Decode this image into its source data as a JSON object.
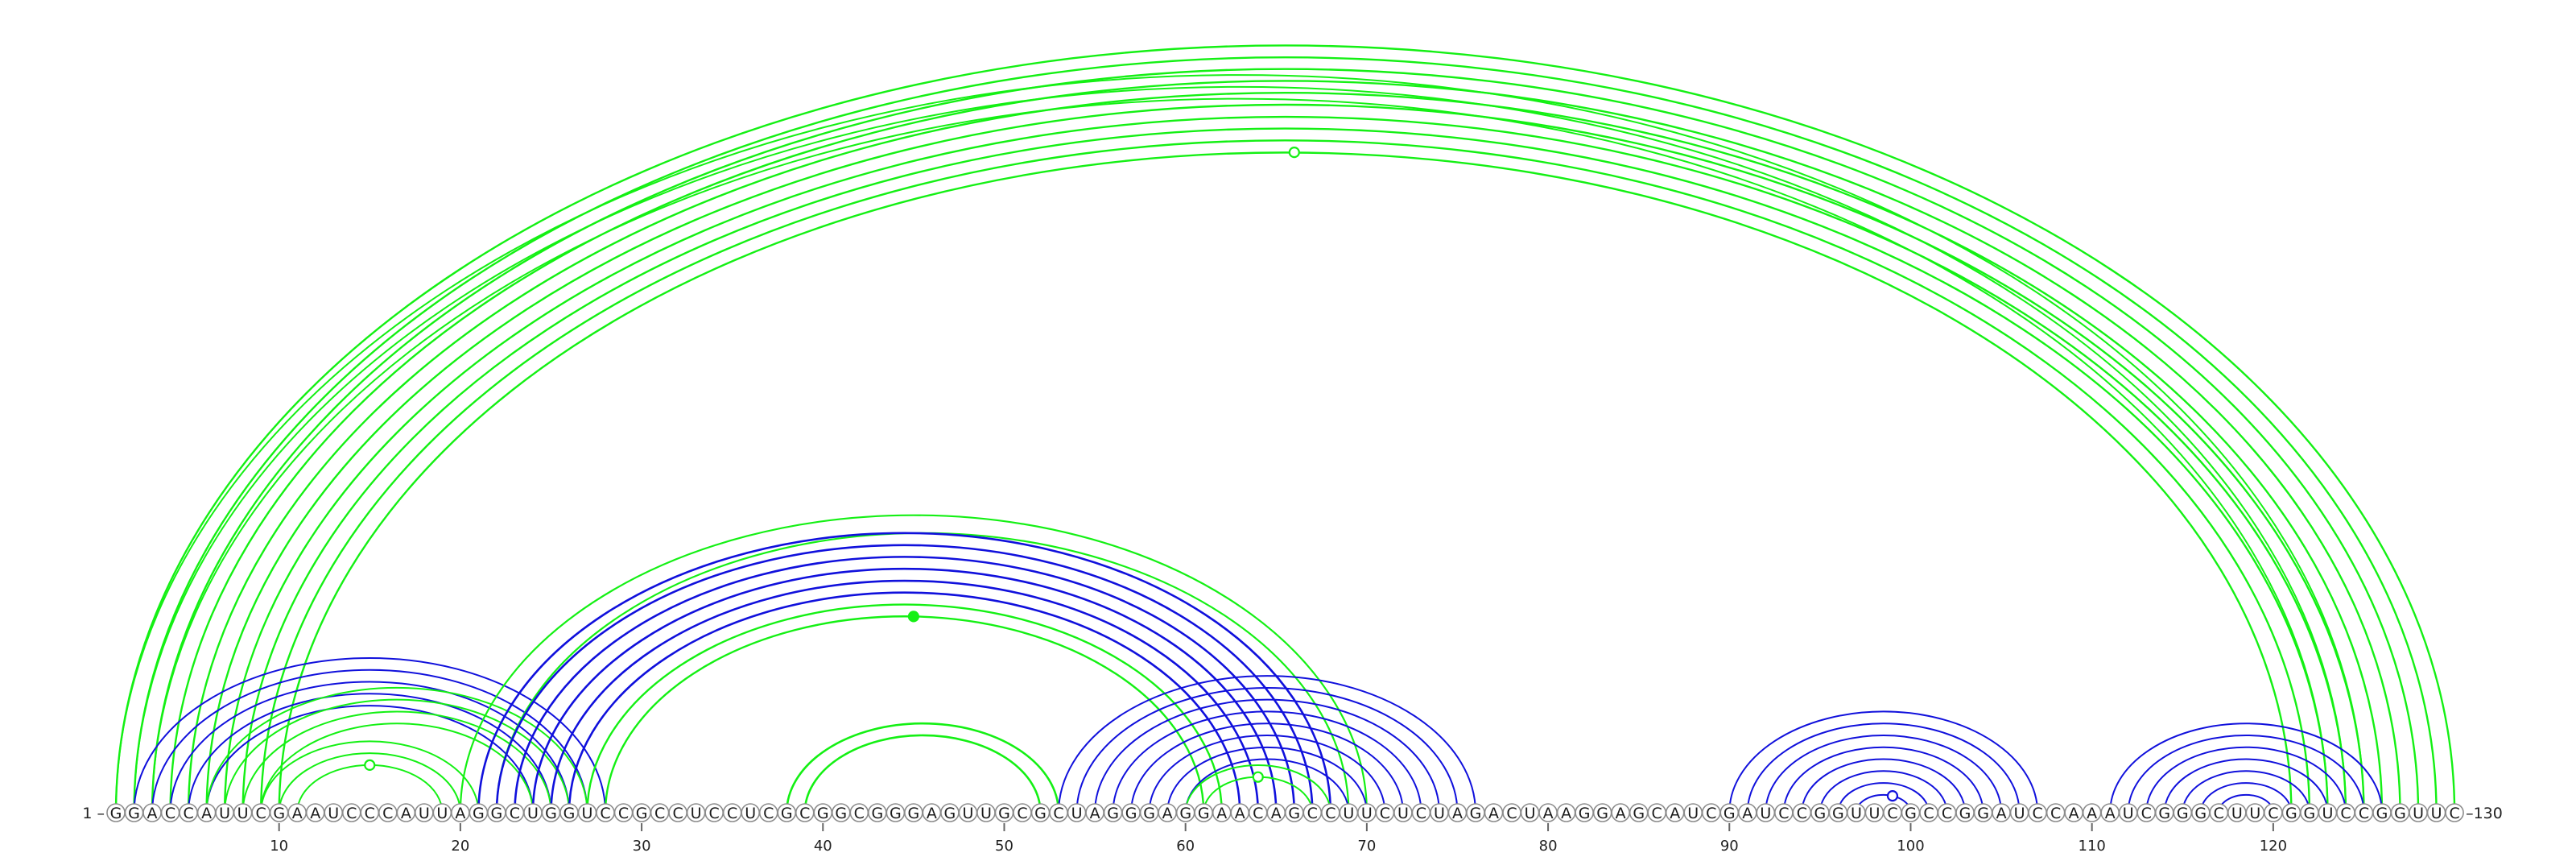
{
  "diagram": {
    "start_label": "1 –",
    "end_label": "–130",
    "sequence": "GGACCAUUCGAAUCCCAUUAGGCUGGUCCGCCUCCUCGCGGCGGGAGUUGCGCUAGGGAGGAACAGCCUUCUCUAGACUAAGGAGCAUCGAUCCGGUUCGCCGGAUCCAAAUCGGGCUUCGGUCCGGUUC",
    "ticks": [
      10,
      20,
      30,
      40,
      50,
      60,
      70,
      80,
      90,
      100,
      110,
      120
    ],
    "colors": {
      "green": "#14f014",
      "blue": "#1010dc"
    },
    "arc_groups": [
      {
        "color": "green",
        "w": 2.4,
        "pairs": [
          [
            1,
            130
          ],
          [
            2,
            129
          ],
          [
            3,
            128
          ],
          [
            4,
            127
          ],
          [
            5,
            126
          ],
          [
            6,
            125
          ],
          [
            7,
            124
          ],
          [
            8,
            123
          ],
          [
            9,
            122
          ],
          [
            10,
            121
          ]
        ],
        "marker": {
          "pos": 66,
          "filled": false
        }
      },
      {
        "color": "green",
        "w": 2.0,
        "pairs": [
          [
            1,
            125
          ],
          [
            2,
            124
          ],
          [
            3,
            123
          ]
        ]
      },
      {
        "color": "blue",
        "w": 2.0,
        "pairs": [
          [
            2,
            28
          ],
          [
            3,
            27
          ],
          [
            4,
            26
          ],
          [
            5,
            25
          ],
          [
            6,
            24
          ]
        ]
      },
      {
        "color": "green",
        "w": 2.0,
        "pairs": [
          [
            6,
            27
          ],
          [
            7,
            26
          ],
          [
            8,
            25
          ],
          [
            9,
            24
          ]
        ]
      },
      {
        "color": "green",
        "w": 2.0,
        "pairs": [
          [
            9,
            21
          ],
          [
            10,
            20
          ],
          [
            11,
            19
          ]
        ],
        "marker": {
          "pos": 15,
          "filled": false
        }
      },
      {
        "color": "green",
        "w": 2.2,
        "pairs": [
          [
            20,
            70
          ],
          [
            22,
            69
          ]
        ]
      },
      {
        "color": "blue",
        "w": 2.6,
        "pairs": [
          [
            21,
            68
          ],
          [
            22,
            67
          ],
          [
            23,
            66
          ],
          [
            24,
            65
          ],
          [
            25,
            64
          ],
          [
            26,
            63
          ]
        ]
      },
      {
        "color": "green",
        "w": 2.4,
        "pairs": [
          [
            27,
            62
          ],
          [
            28,
            61
          ]
        ],
        "marker": {
          "pos": 45,
          "filled": true
        }
      },
      {
        "color": "green",
        "w": 2.6,
        "pairs": [
          [
            38,
            53
          ],
          [
            39,
            52
          ]
        ]
      },
      {
        "color": "blue",
        "w": 2.0,
        "pairs": [
          [
            53,
            76
          ],
          [
            54,
            75
          ],
          [
            55,
            74
          ],
          [
            56,
            73
          ],
          [
            57,
            72
          ],
          [
            58,
            71
          ],
          [
            59,
            70
          ],
          [
            60,
            69
          ]
        ]
      },
      {
        "color": "green",
        "w": 2.0,
        "pairs": [
          [
            60,
            68
          ],
          [
            61,
            67
          ]
        ],
        "marker": {
          "pos": 64,
          "filled": false
        }
      },
      {
        "color": "blue",
        "w": 2.0,
        "pairs": [
          [
            90,
            107
          ],
          [
            91,
            106
          ],
          [
            92,
            105
          ],
          [
            93,
            104
          ],
          [
            94,
            103
          ],
          [
            95,
            102
          ],
          [
            96,
            101
          ],
          [
            97,
            100
          ]
        ],
        "marker": {
          "pos": 99,
          "filled": false
        }
      },
      {
        "color": "blue",
        "w": 2.0,
        "pairs": [
          [
            111,
            126
          ],
          [
            112,
            125
          ],
          [
            113,
            124
          ],
          [
            114,
            123
          ],
          [
            115,
            122
          ],
          [
            116,
            121
          ],
          [
            117,
            120
          ]
        ],
        "marker": {
          "pos": 120,
          "filled": false
        }
      }
    ]
  }
}
